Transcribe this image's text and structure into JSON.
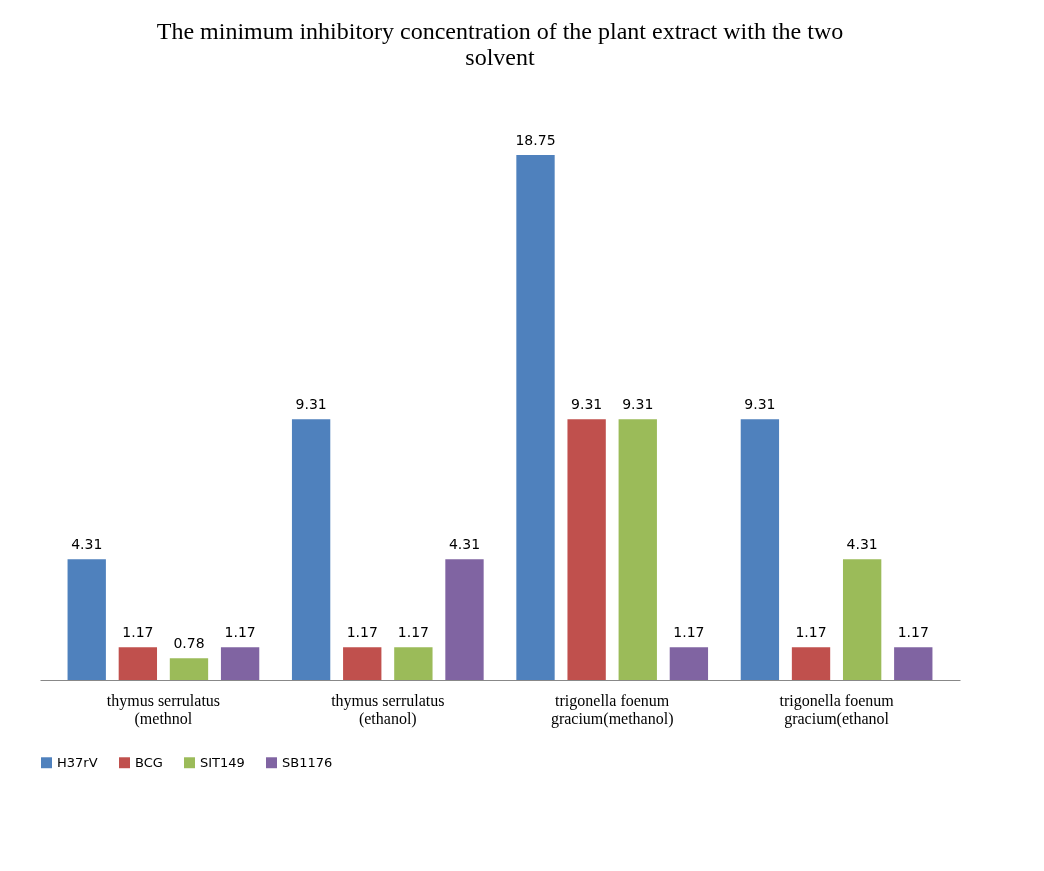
{
  "chart_data": {
    "type": "bar",
    "title": "The minimum inhibitory concentration of the plant extract with the two solvent",
    "categories": [
      "thymus serrulatus (methnol",
      "thymus serrulatus (ethanol)",
      "trigonella foenum gracium(methanol)",
      "trigonella foenum gracium(ethanol"
    ],
    "series": [
      {
        "name": "H37rV",
        "color": "#4f81bd",
        "values": [
          4.31,
          9.31,
          18.75,
          9.31
        ]
      },
      {
        "name": "BCG",
        "color": "#c0504d",
        "values": [
          1.17,
          1.17,
          9.31,
          1.17
        ]
      },
      {
        "name": "SIT149",
        "color": "#9bbb59",
        "values": [
          0.78,
          1.17,
          9.31,
          4.31
        ]
      },
      {
        "name": "SB1176",
        "color": "#8064a2",
        "values": [
          1.17,
          4.31,
          1.17,
          1.17
        ]
      }
    ],
    "data_labels": true,
    "legend": "bottom",
    "grid": false
  }
}
